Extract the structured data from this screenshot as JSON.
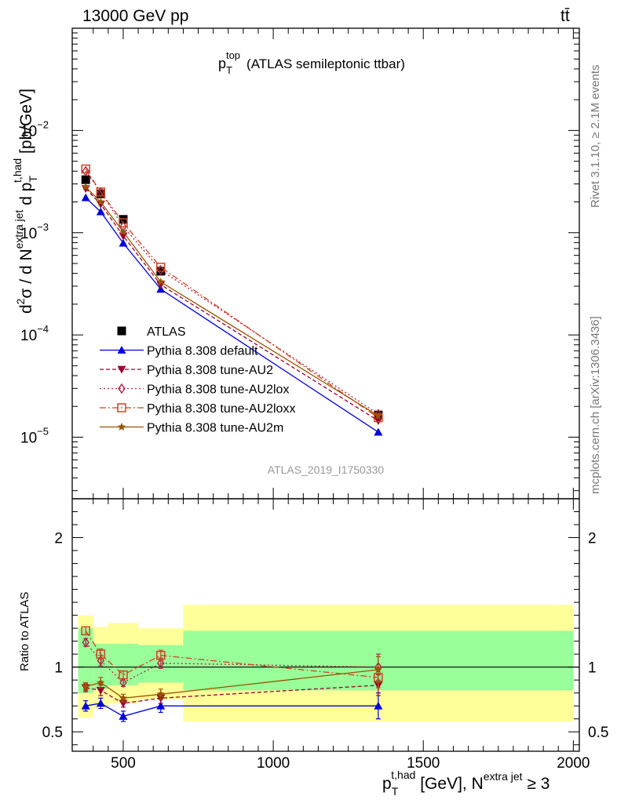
{
  "header": {
    "energy_label": "13000 GeV pp",
    "process_label": "tt̄"
  },
  "side_labels": {
    "rivet": "Rivet 3.1.10, ≥ 2.1M events",
    "mcplots": "mcplots.cern.ch [arXiv:1306.3436]"
  },
  "colors": {
    "ATLAS": "#000000",
    "default": "#0000dd",
    "AU2": "#990033",
    "AU2lox": "#aa2244",
    "AU2loxx": "#cc4422",
    "AU2m": "#995500",
    "band_inner": "#99ff99",
    "band_outer": "#ffff99"
  },
  "chart_data": [
    {
      "type": "line",
      "title": "(ATLAS semileptonic ttbar)",
      "title_var": "p",
      "title_sup": "top",
      "title_sub": "T",
      "analysis_id": "ATLAS_2019_I1750330",
      "ylabel": "d²σ / d N^extra jet d p_T^t,had [pb/GeV]",
      "ylabel_parts": {
        "d1": "d",
        "s1": "2",
        "sigma": "σ / d N",
        "s2": "extra jet",
        "d2": " d p",
        "sub": "T",
        "s3": "t,had",
        "unit": " [pb/GeV]"
      },
      "yscale": "log",
      "ylim": [
        2.5e-06,
        0.1
      ],
      "xlim": [
        330,
        2020
      ],
      "ytick_labels": [
        {
          "base": "10",
          "exp": "−5",
          "value": 1e-05
        },
        {
          "base": "10",
          "exp": "−4",
          "value": 0.0001
        },
        {
          "base": "10",
          "exp": "−3",
          "value": 0.001
        },
        {
          "base": "10",
          "exp": "−2",
          "value": 0.01
        }
      ],
      "series": [
        {
          "name": "ATLAS",
          "marker": "square",
          "x": [
            375,
            425,
            500,
            625,
            1350
          ],
          "y": [
            0.0033,
            0.0024,
            0.00135,
            0.00042,
            1.65e-05
          ]
        },
        {
          "name": "Pythia 8.308 default",
          "marker": "triangle-up",
          "x": [
            375,
            425,
            500,
            625,
            1350
          ],
          "y": [
            0.0022,
            0.0016,
            0.00079,
            0.00028,
            1.12e-05
          ]
        },
        {
          "name": "Pythia 8.308 tune-AU2",
          "marker": "triangle-down",
          "x": [
            375,
            425,
            500,
            625,
            1350
          ],
          "y": [
            0.0027,
            0.0019,
            0.00093,
            0.00031,
            1.45e-05
          ]
        },
        {
          "name": "Pythia 8.308 tune-AU2lox",
          "marker": "diamond",
          "x": [
            375,
            425,
            500,
            625,
            1350
          ],
          "y": [
            0.004,
            0.0025,
            0.00115,
            0.00043,
            1.68e-05
          ]
        },
        {
          "name": "Pythia 8.308 tune-AU2loxx",
          "marker": "open-square",
          "x": [
            375,
            425,
            500,
            625,
            1350
          ],
          "y": [
            0.0042,
            0.0025,
            0.00125,
            0.00046,
            1.55e-05
          ]
        },
        {
          "name": "Pythia 8.308 tune-AU2m",
          "marker": "star",
          "x": [
            375,
            425,
            500,
            625,
            1350
          ],
          "y": [
            0.0028,
            0.002,
            0.00102,
            0.00033,
            1.62e-05
          ]
        }
      ]
    },
    {
      "type": "line",
      "title": "",
      "ylabel": "Ratio to ATLAS",
      "xlabel": "p_T^t,had [GeV], N^extra jet ≥ 3",
      "xlabel_parts": {
        "p": "p",
        "sub": "T",
        "sup": "t,had",
        "mid": " [GeV], N",
        "sup2": "extra jet",
        "tail": " ≥ 3"
      },
      "ylim": [
        0.35,
        2.3
      ],
      "xlim": [
        330,
        2020
      ],
      "xtick_labels": [
        "500",
        "1000",
        "1500",
        "2000"
      ],
      "ytick_labels": [
        "0.5",
        "1",
        "2"
      ],
      "bands": [
        {
          "x0": 350,
          "x1": 400,
          "inner": [
            0.8,
            1.3
          ],
          "outer": [
            0.61,
            1.4
          ]
        },
        {
          "x0": 400,
          "x1": 450,
          "inner": [
            0.83,
            1.18
          ],
          "outer": [
            0.68,
            1.31
          ]
        },
        {
          "x0": 450,
          "x1": 550,
          "inner": [
            0.86,
            1.18
          ],
          "outer": [
            0.72,
            1.34
          ]
        },
        {
          "x0": 550,
          "x1": 700,
          "inner": [
            0.88,
            1.17
          ],
          "outer": [
            0.75,
            1.3
          ]
        },
        {
          "x0": 700,
          "x1": 2000,
          "inner": [
            0.82,
            1.28
          ],
          "outer": [
            0.58,
            1.48
          ]
        }
      ],
      "series": [
        {
          "name": "Pythia 8.308 default",
          "x": [
            375,
            425,
            500,
            625,
            1350
          ],
          "y": [
            0.7,
            0.72,
            0.62,
            0.7,
            0.7
          ],
          "err": [
            0.04,
            0.04,
            0.04,
            0.05,
            0.1
          ]
        },
        {
          "name": "Pythia 8.308 tune-AU2",
          "x": [
            375,
            425,
            500,
            625,
            1350
          ],
          "y": [
            0.84,
            0.82,
            0.72,
            0.76,
            0.86
          ],
          "err": [
            0.03,
            0.04,
            0.03,
            0.04,
            0.08
          ]
        },
        {
          "name": "Pythia 8.308 tune-AU2lox",
          "x": [
            375,
            425,
            500,
            625,
            1350
          ],
          "y": [
            1.19,
            1.05,
            0.88,
            1.03,
            1.0
          ],
          "err": [
            0.03,
            0.04,
            0.03,
            0.04,
            0.1
          ]
        },
        {
          "name": "Pythia 8.308 tune-AU2loxx",
          "x": [
            375,
            425,
            500,
            625,
            1350
          ],
          "y": [
            1.28,
            1.1,
            0.94,
            1.09,
            0.92
          ],
          "err": [
            0.03,
            0.04,
            0.03,
            0.04,
            0.08
          ]
        },
        {
          "name": "Pythia 8.308 tune-AU2m",
          "x": [
            375,
            425,
            500,
            625,
            1350
          ],
          "y": [
            0.85,
            0.88,
            0.76,
            0.79,
            0.98
          ],
          "err": [
            0.03,
            0.04,
            0.03,
            0.04,
            0.1
          ]
        }
      ]
    }
  ]
}
